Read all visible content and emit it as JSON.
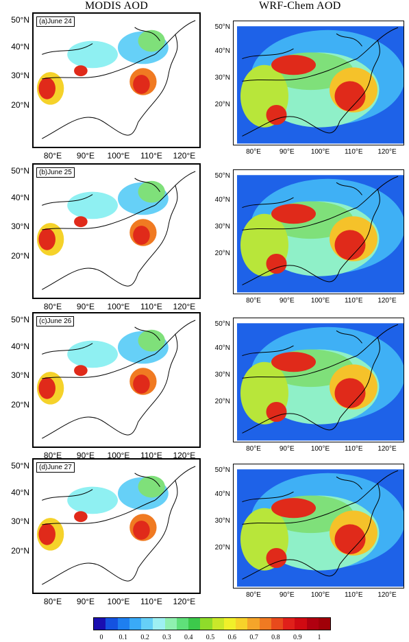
{
  "titles": {
    "left": "MODIS AOD",
    "right": "WRF-Chem AOD"
  },
  "panels": [
    {
      "label": "(a)June 24"
    },
    {
      "label": "(b)June 25"
    },
    {
      "label": "(c)June 26"
    },
    {
      "label": "(d)June 27"
    }
  ],
  "left_axes": {
    "y_ticks": [
      "50°N",
      "40°N",
      "30°N",
      "20°N"
    ],
    "x_ticks": [
      "80°E",
      "90°E",
      "100°E",
      "110°E",
      "120°E"
    ]
  },
  "right_axes": {
    "y_ticks": [
      "50°N",
      "40°N",
      "30°N",
      "20°N"
    ],
    "x_ticks": [
      "80°E",
      "90°E",
      "100°E",
      "110°E",
      "120°E"
    ]
  },
  "colorbar": {
    "labels": [
      "0",
      "0.1",
      "0.2",
      "0.3",
      "0.4",
      "0.5",
      "0.6",
      "0.7",
      "0.8",
      "0.9",
      "1"
    ],
    "colors": [
      "#1a0fb0",
      "#1452e0",
      "#1e7ff0",
      "#3aaaf7",
      "#66d0f7",
      "#9ef0f2",
      "#8ff0b0",
      "#5fe07a",
      "#3cc94b",
      "#8fdc2a",
      "#c9e82a",
      "#f0f02a",
      "#f7d22a",
      "#f5a52a",
      "#f07a22",
      "#e84a1c",
      "#e0201a",
      "#d00a12",
      "#b00010",
      "#a00008"
    ]
  }
}
